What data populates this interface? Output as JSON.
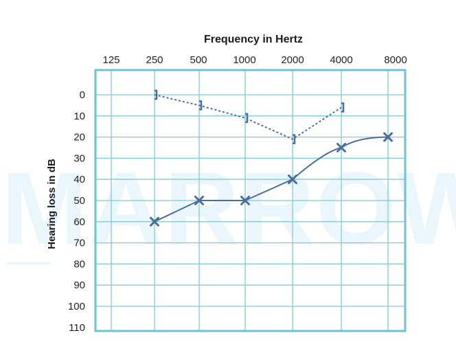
{
  "watermark": "MARROW",
  "colors": {
    "grid": "#7ecbd6",
    "frame": "#6cc3cf",
    "series": "#4a6e9c"
  },
  "chart_data": {
    "type": "line",
    "title": "Frequency in Hertz",
    "xlabel": "Frequency in Hertz",
    "ylabel": "Hearing loss in dB",
    "x_ticks": [
      125,
      250,
      500,
      1000,
      2000,
      4000,
      8000
    ],
    "y_ticks": [
      0,
      10,
      20,
      30,
      40,
      50,
      60,
      70,
      80,
      90,
      100,
      110
    ],
    "ylim": [
      110,
      0
    ],
    "y_inverted": true,
    "grid": true,
    "series": [
      {
        "marker": "bracket",
        "line_style": "dotted",
        "points": [
          {
            "x": 250,
            "y": 0
          },
          {
            "x": 500,
            "y": 5
          },
          {
            "x": 1000,
            "y": 11
          },
          {
            "x": 2000,
            "y": 21
          },
          {
            "x": 4000,
            "y": 6
          }
        ]
      },
      {
        "marker": "x",
        "line_style": "solid",
        "points": [
          {
            "x": 250,
            "y": 60
          },
          {
            "x": 500,
            "y": 50
          },
          {
            "x": 1000,
            "y": 50
          },
          {
            "x": 2000,
            "y": 40
          },
          {
            "x": 4000,
            "y": 25
          },
          {
            "x": 8000,
            "y": 20
          }
        ]
      }
    ]
  }
}
